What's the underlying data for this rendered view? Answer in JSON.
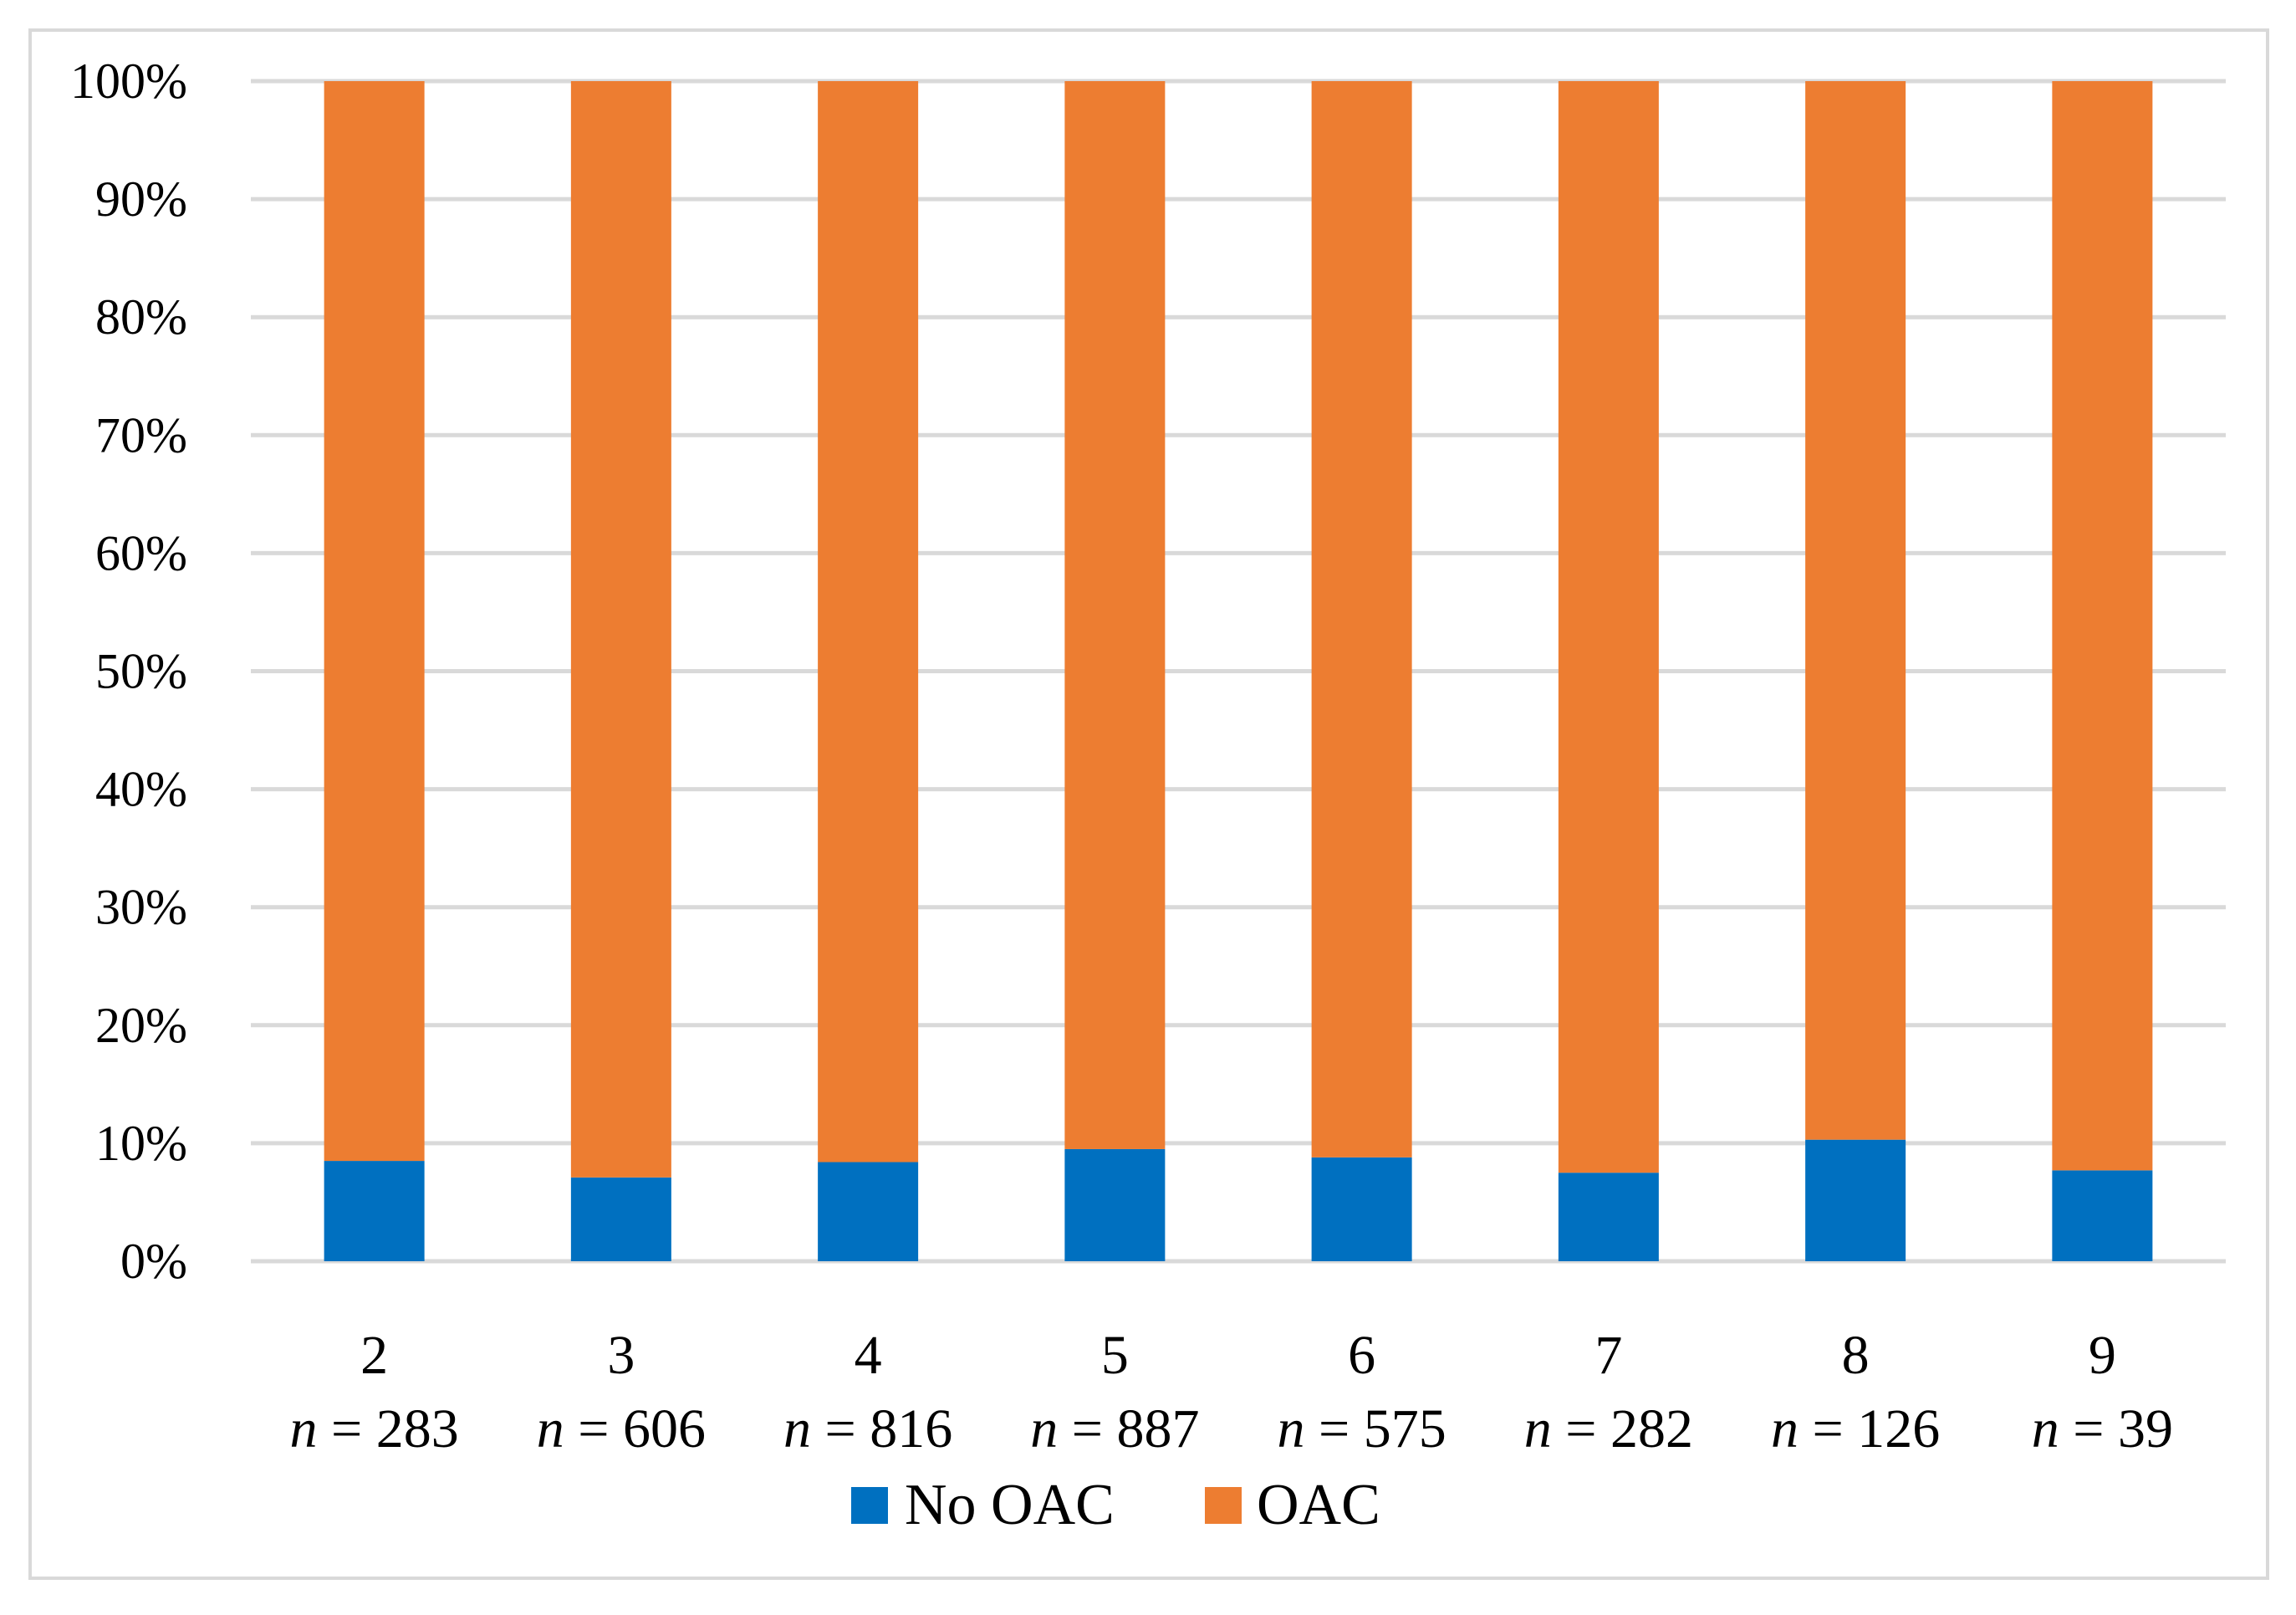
{
  "chart_data": {
    "type": "bar",
    "stacked": true,
    "percent_stacked": true,
    "categories": [
      "2",
      "3",
      "4",
      "5",
      "6",
      "7",
      "8",
      "9"
    ],
    "category_counts": [
      "283",
      "606",
      "816",
      "887",
      "575",
      "282",
      "126",
      "39"
    ],
    "n_label": "n",
    "series": [
      {
        "name": "No OAC",
        "color": "#0070c0",
        "values": [
          8.5,
          7.1,
          8.4,
          9.5,
          8.8,
          7.5,
          10.3,
          7.7
        ]
      },
      {
        "name": "OAC",
        "color": "#ed7d31",
        "values": [
          91.5,
          92.9,
          91.6,
          90.5,
          91.2,
          92.5,
          89.7,
          92.3
        ]
      }
    ],
    "y_ticks": [
      "0%",
      "10%",
      "20%",
      "30%",
      "40%",
      "50%",
      "60%",
      "70%",
      "80%",
      "90%",
      "100%"
    ],
    "ylim": [
      0,
      100
    ],
    "grid": true,
    "gridline_color": "#d9d9d9",
    "legend": "bottom",
    "title": "",
    "xlabel": "",
    "ylabel": ""
  }
}
